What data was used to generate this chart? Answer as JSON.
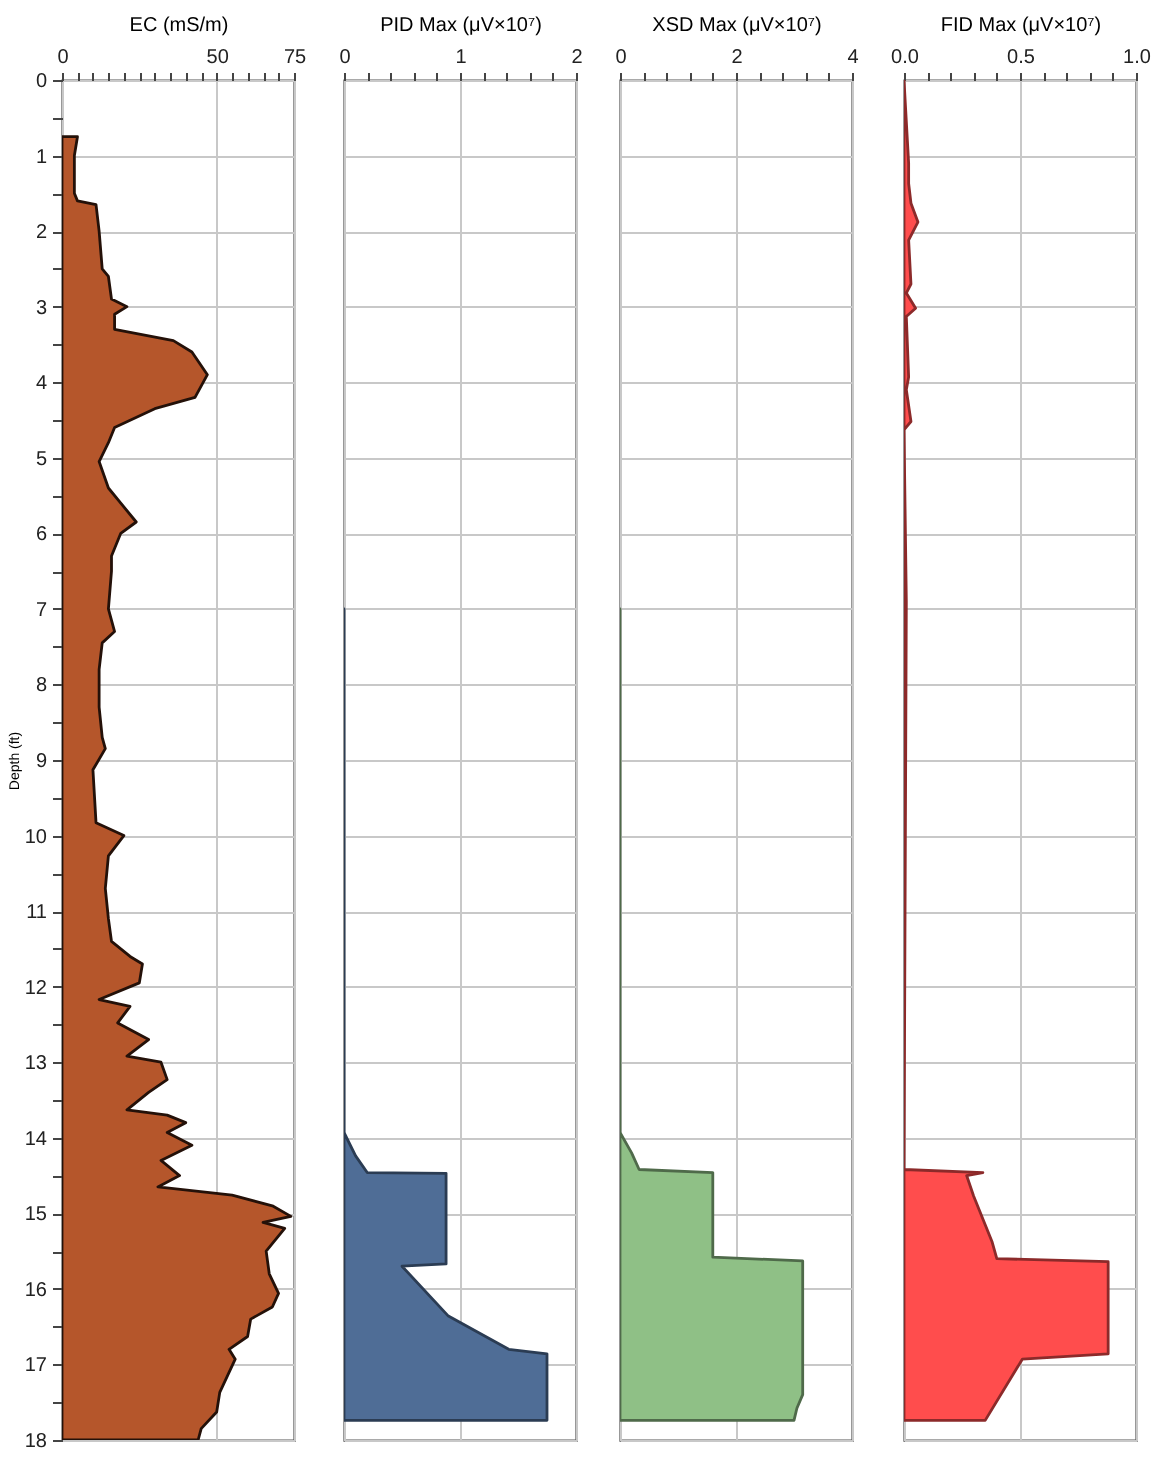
{
  "chart_data": [
    {
      "type": "area",
      "orientation": "horizontal",
      "xlabel": "EC (mS/m)",
      "ylabel": "Depth (ft)",
      "color": "#b5562b",
      "grid": true,
      "x": [
        0.75,
        1.0,
        1.5,
        1.6,
        1.65,
        2.0,
        2.5,
        2.6,
        2.9,
        3.0,
        3.1,
        3.3,
        3.45,
        3.6,
        3.9,
        4.2,
        4.35,
        4.6,
        4.8,
        5.05,
        5.4,
        5.6,
        5.85,
        6.0,
        6.3,
        6.5,
        7.0,
        7.3,
        7.45,
        7.8,
        8.3,
        8.7,
        8.85,
        9.13,
        9.83,
        10.0,
        10.27,
        10.7,
        11.1,
        11.4,
        11.6,
        11.7,
        11.95,
        12.17,
        12.26,
        12.48,
        12.7,
        12.92,
        13.0,
        13.23,
        13.4,
        13.63,
        13.7,
        13.8,
        13.93,
        14.1,
        14.3,
        14.5,
        14.65,
        14.76,
        14.9,
        15.04,
        15.12,
        15.2,
        15.5,
        15.8,
        16.06,
        16.24,
        16.4,
        16.63,
        16.8,
        16.93,
        17.37,
        17.63,
        17.85,
        18.0
      ],
      "values": [
        5,
        4,
        4,
        5,
        11,
        12,
        13,
        15,
        16,
        21,
        17,
        17,
        36,
        42,
        47,
        43,
        30,
        17,
        15,
        12,
        15,
        19,
        24,
        19,
        16,
        16,
        15,
        17,
        13,
        12,
        12,
        13,
        14,
        10,
        11,
        20,
        15,
        14,
        15,
        16,
        22,
        26,
        25,
        12,
        22,
        18,
        28,
        21,
        32,
        34,
        28,
        21,
        34,
        40,
        34,
        42,
        32,
        38,
        31,
        55,
        68,
        74,
        65,
        72,
        66,
        67,
        70,
        68,
        61,
        60,
        54,
        56,
        51,
        50,
        45,
        44
      ],
      "xlim": [
        0,
        75
      ],
      "xticks": [
        0,
        {
          "value": 5,
          "label": null
        },
        {
          "value": 10,
          "label": null
        },
        {
          "value": 15,
          "label": null
        },
        {
          "value": 20,
          "label": null
        },
        {
          "value": 25,
          "label": null
        },
        {
          "value": 30,
          "label": null
        },
        {
          "value": 35,
          "label": null
        },
        {
          "value": 40,
          "label": null
        },
        {
          "value": 45,
          "label": null
        },
        50,
        {
          "value": 55,
          "label": null
        },
        {
          "value": 60,
          "label": null
        },
        {
          "value": 65,
          "label": null
        },
        {
          "value": 70,
          "label": null
        },
        75
      ],
      "ylim": [
        18,
        0
      ],
      "yticks": [
        0,
        {
          "value": 0.5,
          "label": null
        },
        1,
        {
          "value": 1.5,
          "label": null
        },
        2,
        {
          "value": 2.5,
          "label": null
        },
        3,
        {
          "value": 3.5,
          "label": null
        },
        4,
        {
          "value": 4.5,
          "label": null
        },
        5,
        {
          "value": 5.5,
          "label": null
        },
        6,
        {
          "value": 6.5,
          "label": null
        },
        7,
        {
          "value": 7.5,
          "label": null
        },
        8,
        {
          "value": 8.5,
          "label": null
        },
        9,
        {
          "value": 9.5,
          "label": null
        },
        10,
        {
          "value": 10.5,
          "label": null
        },
        11,
        {
          "value": 11.5,
          "label": null
        },
        12,
        {
          "value": 12.5,
          "label": null
        },
        13,
        {
          "value": 13.5,
          "label": null
        },
        14,
        {
          "value": 14.5,
          "label": null
        },
        15,
        {
          "value": 15.5,
          "label": null
        },
        16,
        {
          "value": 16.5,
          "label": null
        },
        17,
        {
          "value": 17.5,
          "label": null
        },
        18
      ]
    },
    {
      "type": "area",
      "orientation": "horizontal",
      "xlabel": "PID Max (μV×10⁷)",
      "color": "#4f6d96",
      "grid": true,
      "tick_labels": "x",
      "x": [
        7.0,
        13.93,
        14.24,
        14.46,
        14.47,
        15.67,
        15.7,
        16.36,
        16.8,
        16.86,
        17.74
      ],
      "values": [
        0,
        0,
        0.1,
        0.2,
        0.88,
        0.88,
        0.5,
        0.9,
        1.42,
        1.75,
        1.75
      ],
      "xlim": [
        0,
        2
      ],
      "xticks": [
        0,
        {
          "value": 0.2,
          "label": null
        },
        {
          "value": 0.4,
          "label": null
        },
        {
          "value": 0.6,
          "label": null
        },
        {
          "value": 0.8,
          "label": null
        },
        1,
        {
          "value": 1.2,
          "label": null
        },
        {
          "value": 1.4,
          "label": null
        },
        {
          "value": 1.6,
          "label": null
        },
        {
          "value": 1.8,
          "label": null
        },
        2
      ],
      "ylim": [
        18,
        0
      ],
      "yticks": [
        0,
        1,
        2,
        3,
        4,
        5,
        6,
        7,
        8,
        9,
        10,
        11,
        12,
        13,
        14,
        15,
        16,
        17,
        18
      ]
    },
    {
      "type": "area",
      "orientation": "horizontal",
      "xlabel": "XSD Max (μV×10⁷)",
      "color": "#8fc086",
      "grid": true,
      "tick_labels": "x",
      "x": [
        7.0,
        13.93,
        14.2,
        14.42,
        14.46,
        15.58,
        15.63,
        17.4,
        17.58,
        17.74
      ],
      "values": [
        0,
        0,
        0.2,
        0.33,
        1.6,
        1.6,
        3.15,
        3.15,
        3.05,
        3.0
      ],
      "xlim": [
        0,
        4
      ],
      "xticks": [
        0,
        {
          "value": 0.4,
          "label": null
        },
        {
          "value": 0.8,
          "label": null
        },
        {
          "value": 1.2,
          "label": null
        },
        {
          "value": 1.6,
          "label": null
        },
        2,
        {
          "value": 2.4,
          "label": null
        },
        {
          "value": 2.8,
          "label": null
        },
        {
          "value": 3.2,
          "label": null
        },
        {
          "value": 3.6,
          "label": null
        },
        4
      ],
      "ylim": [
        18,
        0
      ],
      "yticks": [
        0,
        1,
        2,
        3,
        4,
        5,
        6,
        7,
        8,
        9,
        10,
        11,
        12,
        13,
        14,
        15,
        16,
        17,
        18
      ]
    },
    {
      "type": "area",
      "orientation": "horizontal",
      "xlabel": "FID Max (μV×10⁷)",
      "color": "#ff4d4d",
      "grid": true,
      "tick_labels": "x",
      "x": [
        0,
        1.1,
        1.37,
        1.63,
        1.88,
        2.12,
        2.7,
        2.82,
        3.02,
        3.13,
        3.93,
        4.1,
        4.52,
        4.63,
        6.9,
        14.42,
        14.46,
        14.5,
        14.77,
        15.38,
        15.6,
        15.64,
        16.86,
        16.93,
        17.74
      ],
      "values": [
        0,
        0.02,
        0.02,
        0.03,
        0.06,
        0.02,
        0.03,
        0.01,
        0.05,
        0.01,
        0.02,
        0.01,
        0.03,
        0,
        0.01,
        0,
        0.34,
        0.27,
        0.3,
        0.38,
        0.4,
        0.88,
        0.88,
        0.51,
        0.35
      ],
      "xlim": [
        0,
        1
      ],
      "xticks": [
        {
          "value": 0,
          "label": "0.0"
        },
        {
          "value": 0.1,
          "label": null
        },
        {
          "value": 0.2,
          "label": null
        },
        {
          "value": 0.3,
          "label": null
        },
        {
          "value": 0.4,
          "label": null
        },
        0.5,
        {
          "value": 0.6,
          "label": null
        },
        {
          "value": 0.7,
          "label": null
        },
        {
          "value": 0.8,
          "label": null
        },
        {
          "value": 0.9,
          "label": null
        },
        {
          "value": 1,
          "label": "1.0"
        }
      ],
      "ylim": [
        18,
        0
      ],
      "yticks": [
        0,
        1,
        2,
        3,
        4,
        5,
        6,
        7,
        8,
        9,
        10,
        11,
        12,
        13,
        14,
        15,
        16,
        17,
        18
      ]
    }
  ]
}
